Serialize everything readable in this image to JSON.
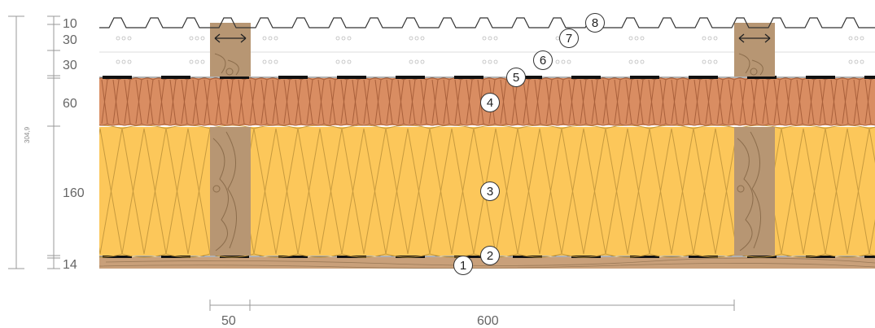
{
  "diagram": {
    "layer_thicknesses": [
      "10",
      "30",
      "30",
      "60",
      "160",
      "14"
    ],
    "total_height": "304,9",
    "horizontal_dims": [
      "50",
      "600"
    ],
    "callouts": [
      "1",
      "2",
      "3",
      "4",
      "5",
      "6",
      "7",
      "8"
    ],
    "colors": {
      "insulation": "#fcc75a",
      "wood_fibre_board": "#d98d62",
      "timber": "#b79673",
      "dimension_lines": "#999999"
    }
  }
}
